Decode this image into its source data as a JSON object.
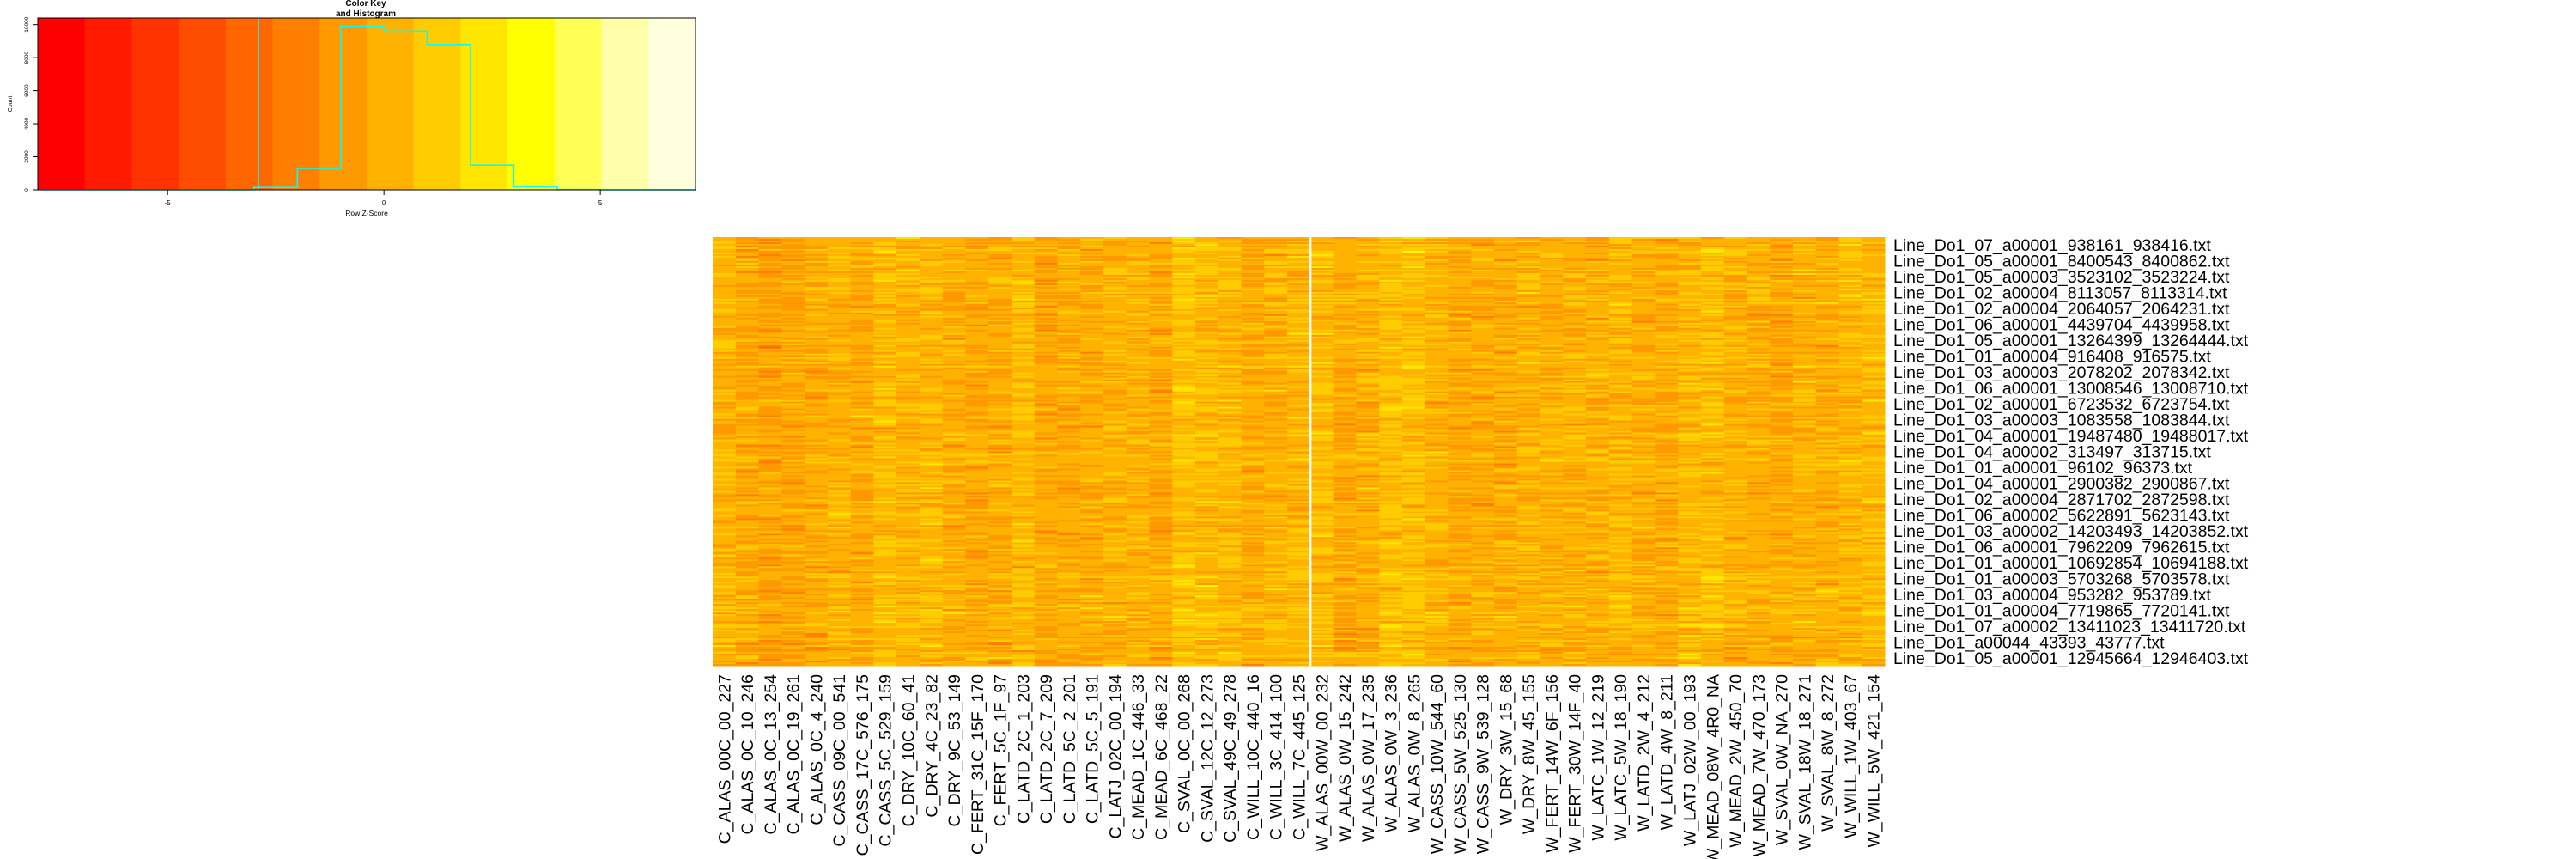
{
  "color_key": {
    "title_line1": "Color Key",
    "title_line2": "and Histogram",
    "xlabel": "Row Z-Score",
    "ylabel": "Count",
    "x_range": [
      -8,
      7.2
    ],
    "y_range": [
      0,
      10400
    ],
    "x_ticks": [
      "-5",
      "0",
      "5"
    ],
    "x_tick_values": [
      -5,
      0,
      5
    ],
    "y_ticks": [
      "0",
      "2000",
      "4000",
      "6000",
      "8000",
      "10000"
    ],
    "y_tick_values": [
      0,
      2000,
      4000,
      6000,
      8000,
      10000
    ],
    "color_bins": [
      "#ff0000",
      "#ff1a00",
      "#ff3300",
      "#ff4d00",
      "#ff6600",
      "#ff8000",
      "#ff9900",
      "#ffb300",
      "#ffcc00",
      "#ffe600",
      "#ffff00",
      "#ffff55",
      "#ffffaa",
      "#ffffdd"
    ],
    "density_center": -2.9,
    "histogram_x": [
      -8.0,
      -7.0,
      -6.0,
      -5.0,
      -4.0,
      -3.0,
      -2.0,
      -1.0,
      0.0,
      1.0,
      2.0,
      3.0,
      4.0,
      5.0,
      6.0,
      7.2
    ],
    "histogram_y": [
      0,
      0,
      0,
      0,
      0,
      150,
      1300,
      9900,
      9600,
      8800,
      1500,
      200,
      20,
      0,
      0,
      0
    ],
    "trace_color": "#00ffff"
  },
  "heatmap": {
    "n_rows": 250,
    "gap_after_column": 26,
    "column_labels": [
      "C_ALAS_00C_00_227",
      "C_ALAS_0C_10_246",
      "C_ALAS_0C_13_254",
      "C_ALAS_0C_19_261",
      "C_ALAS_0C_4_240",
      "C_CASS_09C_00_541",
      "C_CASS_17C_576_175",
      "C_CASS_5C_529_159",
      "C_DRY_10C_60_41",
      "C_DRY_4C_23_82",
      "C_DRY_9C_53_149",
      "C_FERT_31C_15F_170",
      "C_FERT_5C_1F_97",
      "C_LATD_2C_1_203",
      "C_LATD_2C_7_209",
      "C_LATD_5C_2_201",
      "C_LATD_5C_5_191",
      "C_LATJ_02C_00_194",
      "C_MEAD_1C_446_33",
      "C_MEAD_6C_468_22",
      "C_SVAL_0C_00_268",
      "C_SVAL_12C_12_273",
      "C_SVAL_49C_49_278",
      "C_WILL_10C_440_16",
      "C_WILL_3C_414_100",
      "C_WILL_7C_445_125",
      "W_ALAS_00W_00_232",
      "W_ALAS_0W_15_242",
      "W_ALAS_0W_17_235",
      "W_ALAS_0W_3_236",
      "W_ALAS_0W_8_265",
      "W_CASS_10W_544_60",
      "W_CASS_5W_525_130",
      "W_CASS_9W_539_128",
      "W_DRY_3W_15_68",
      "W_DRY_8W_45_155",
      "W_FERT_14W_6F_156",
      "W_FERT_30W_14F_40",
      "W_LATC_1W_12_219",
      "W_LATC_5W_18_190",
      "W_LATD_2W_4_212",
      "W_LATD_4W_8_211",
      "W_LATJ_02W_00_193",
      "W_MEAD_08W_4R0_NA",
      "W_MEAD_2W_450_70",
      "W_MEAD_7W_470_173",
      "W_SVAL_0W_NA_270",
      "W_SVAL_18W_18_271",
      "W_SVAL_8W_8_272",
      "W_WILL_1W_403_67",
      "W_WILL_5W_421_154"
    ],
    "row_labels": [
      "Line_Do1_07_a00001_938161_938416.txt",
      "Line_Do1_05_a00001_8400543_8400862.txt",
      "Line_Do1_05_a00003_3523102_3523224.txt",
      "Line_Do1_02_a00004_8113057_8113314.txt",
      "Line_Do1_02_a00004_2064057_2064231.txt",
      "Line_Do1_06_a00001_4439704_4439958.txt",
      "Line_Do1_05_a00001_13264399_13264444.txt",
      "Line_Do1_01_a00004_916408_916575.txt",
      "Line_Do1_03_a00003_2078202_2078342.txt",
      "Line_Do1_06_a00001_13008546_13008710.txt",
      "Line_Do1_02_a00001_6723532_6723754.txt",
      "Line_Do1_03_a00003_1083558_1083844.txt",
      "Line_Do1_04_a00001_19487480_19488017.txt",
      "Line_Do1_04_a00002_313497_313715.txt",
      "Line_Do1_01_a00001_96102_96373.txt",
      "Line_Do1_04_a00001_2900382_2900867.txt",
      "Line_Do1_02_a00004_2871702_2872598.txt",
      "Line_Do1_06_a00002_5622891_5623143.txt",
      "Line_Do1_03_a00002_14203493_14203852.txt",
      "Line_Do1_06_a00001_7962209_7962615.txt",
      "Line_Do1_01_a00001_10692854_10694188.txt",
      "Line_Do1_01_a00003_5703268_5703578.txt",
      "Line_Do1_03_a00004_953282_953789.txt",
      "Line_Do1_01_a00004_7719865_7720141.txt",
      "Line_Do1_07_a00002_13411023_13411720.txt",
      "Line_Do1_a00044_43393_43777.txt",
      "Line_Do1_05_a00001_12945664_12946403.txt"
    ]
  }
}
